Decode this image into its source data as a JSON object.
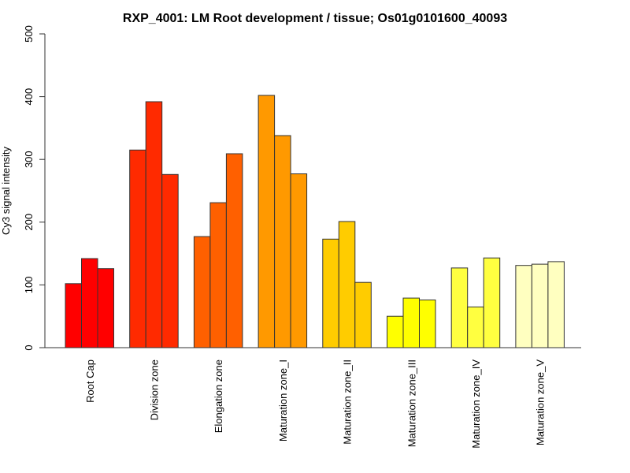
{
  "chart_data": {
    "type": "bar",
    "title": "RXP_4001: LM Root development / tissue; Os01g0101600_40093",
    "xlabel": "",
    "ylabel": "Cy3 signal intensity",
    "ylim": [
      0,
      500
    ],
    "yticks": [
      "0",
      "100",
      "200",
      "300",
      "400",
      "500"
    ],
    "grid": false,
    "categories": [
      "Root Cap",
      "Division zone",
      "Elongation zone",
      "Maturation zone_I",
      "Maturation zone_II",
      "Maturation zone_III",
      "Maturation zone_IV",
      "Maturation zone_V"
    ],
    "colors": [
      "#FF0000",
      "#FF2A00",
      "#FF6000",
      "#FF9900",
      "#FFCC00",
      "#FFFF00",
      "#FFFF40",
      "#FFFFC0"
    ],
    "replicates_per_category": 3,
    "values": [
      [
        102,
        142,
        126
      ],
      [
        315,
        392,
        276
      ],
      [
        177,
        231,
        309
      ],
      [
        402,
        338,
        277
      ],
      [
        173,
        201,
        104
      ],
      [
        50,
        79,
        76
      ],
      [
        127,
        65,
        143
      ],
      [
        131,
        133,
        137
      ]
    ]
  }
}
